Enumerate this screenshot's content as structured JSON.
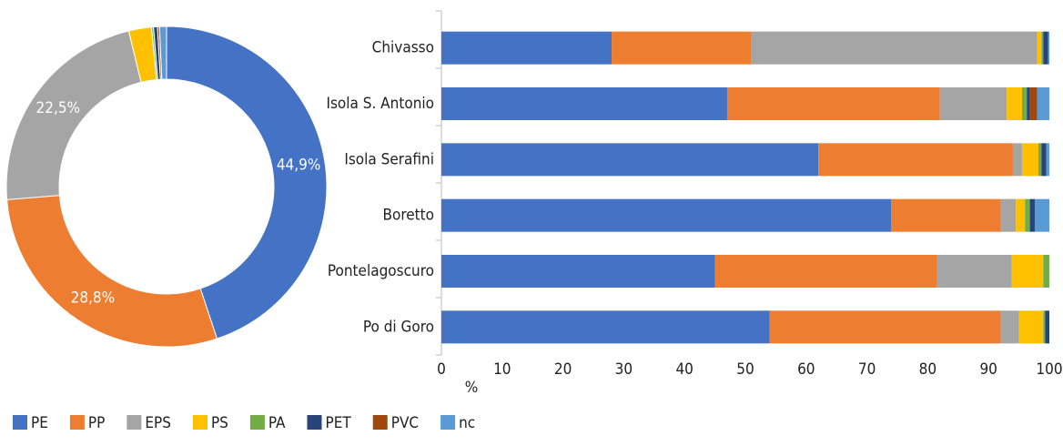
{
  "chart_data": [
    {
      "type": "donut",
      "values": [
        44.9,
        28.8,
        22.5,
        2.3,
        0.2,
        0.4,
        0.2,
        0.7
      ],
      "value_labels": [
        "44,9%",
        "28,8%",
        "22,5%",
        null,
        null,
        null,
        null,
        null
      ]
    },
    {
      "type": "stacked_barh",
      "categories": [
        "Chivasso",
        "Isola S. Antonio",
        "Isola Serafini",
        "Boretto",
        "Pontelagoscuro",
        "Po di Goro"
      ],
      "series": [
        {
          "name": "PE",
          "color": "#4472c4",
          "values": [
            28,
            47,
            62,
            74,
            45,
            54
          ]
        },
        {
          "name": "PP",
          "color": "#ed7d31",
          "values": [
            23,
            35,
            32,
            18,
            36.5,
            38
          ]
        },
        {
          "name": "EPS",
          "color": "#a5a5a5",
          "values": [
            47,
            11,
            1.5,
            2.5,
            12.3,
            3
          ]
        },
        {
          "name": "PS",
          "color": "#ffc000",
          "values": [
            0.7,
            2.5,
            2.7,
            1.5,
            5.2,
            4
          ]
        },
        {
          "name": "PA",
          "color": "#70ad47",
          "values": [
            0.3,
            0.8,
            0.5,
            0.8,
            1,
            0.3
          ]
        },
        {
          "name": "PET",
          "color": "#264478",
          "values": [
            0.8,
            0.5,
            0.8,
            0.8,
            0,
            0.7
          ]
        },
        {
          "name": "PVC",
          "color": "#9e480e",
          "values": [
            0,
            1.2,
            0,
            0,
            0,
            0
          ]
        },
        {
          "name": "nc",
          "color": "#5b9bd5",
          "values": [
            0.2,
            2,
            0.5,
            2.4,
            0,
            0
          ]
        }
      ],
      "xlim": [
        0,
        100
      ],
      "xticks": [
        0,
        10,
        20,
        30,
        40,
        50,
        60,
        70,
        80,
        90,
        100
      ],
      "xlabel": "%",
      "grid": false,
      "legend": "bottom"
    }
  ]
}
